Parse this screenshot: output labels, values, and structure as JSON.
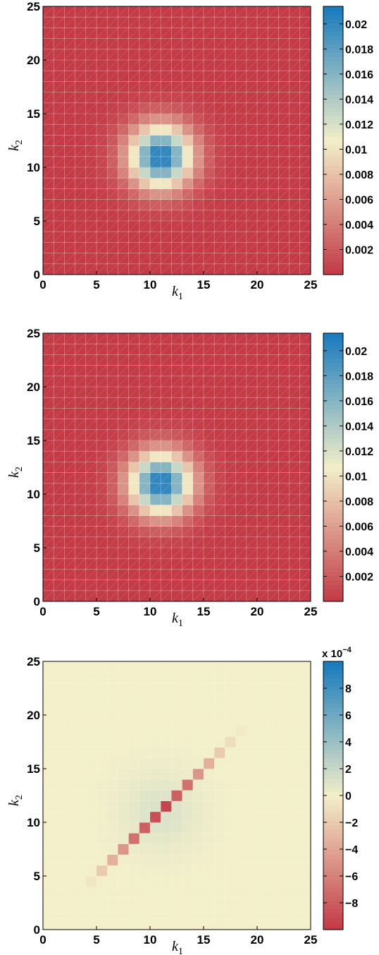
{
  "colors": {
    "low": "#c33b47",
    "mid": "#f3efc9",
    "high": "#1a7bbd"
  },
  "chart_data": [
    {
      "type": "heatmap",
      "title": "",
      "xlabel": "k",
      "xlabel_sub": "1",
      "ylabel": "k",
      "ylabel_sub": "2",
      "xlim": [
        0,
        25
      ],
      "ylim": [
        0,
        25
      ],
      "x_ticks": [
        "0",
        "5",
        "10",
        "15",
        "20",
        "25"
      ],
      "y_ticks": [
        "0",
        "5",
        "10",
        "15",
        "20",
        "25"
      ],
      "grid": "cell-mesh",
      "pattern": "gaussian-bump",
      "peak": 0.0214,
      "center": [
        11,
        11
      ],
      "sigma": 2.1,
      "clim": [
        0,
        0.0214
      ],
      "colorbar": {
        "ticks": [
          0.002,
          0.004,
          0.006,
          0.008,
          0.01,
          0.012,
          0.014,
          0.016,
          0.018,
          0.02
        ],
        "tick_labels": [
          "0.002",
          "0.004",
          "0.006",
          "0.008",
          "0.01",
          "0.012",
          "0.014",
          "0.016",
          "0.018",
          "0.02"
        ],
        "exponent_label": ""
      }
    },
    {
      "type": "heatmap",
      "title": "",
      "xlabel": "k",
      "xlabel_sub": "1",
      "ylabel": "k",
      "ylabel_sub": "2",
      "xlim": [
        0,
        25
      ],
      "ylim": [
        0,
        25
      ],
      "x_ticks": [
        "0",
        "5",
        "10",
        "15",
        "20",
        "25"
      ],
      "y_ticks": [
        "0",
        "5",
        "10",
        "15",
        "20",
        "25"
      ],
      "grid": "cell-mesh",
      "pattern": "gaussian-bump",
      "peak": 0.0214,
      "center": [
        11,
        11
      ],
      "sigma": 2.1,
      "clim": [
        0,
        0.0214
      ],
      "colorbar": {
        "ticks": [
          0.002,
          0.004,
          0.006,
          0.008,
          0.01,
          0.012,
          0.014,
          0.016,
          0.018,
          0.02
        ],
        "tick_labels": [
          "0.002",
          "0.004",
          "0.006",
          "0.008",
          "0.01",
          "0.012",
          "0.014",
          "0.016",
          "0.018",
          "0.02"
        ],
        "exponent_label": ""
      }
    },
    {
      "type": "heatmap",
      "title": "",
      "xlabel": "k",
      "xlabel_sub": "1",
      "ylabel": "k",
      "ylabel_sub": "2",
      "xlim": [
        0,
        25
      ],
      "ylim": [
        0,
        25
      ],
      "x_ticks": [
        "0",
        "5",
        "10",
        "15",
        "20",
        "25"
      ],
      "y_ticks": [
        "0",
        "5",
        "10",
        "15",
        "20",
        "25"
      ],
      "grid": "faint",
      "pattern": "difference-diagonal",
      "clim": [
        -0.001,
        0.001
      ],
      "bump_peak": 0.00012,
      "bump_center": [
        11,
        11
      ],
      "bump_sigma": 2.5,
      "diagonal": [
        {
          "k": 4,
          "value": -5e-05
        },
        {
          "k": 5,
          "value": -0.0002
        },
        {
          "k": 6,
          "value": -0.00035
        },
        {
          "k": 7,
          "value": -0.0005
        },
        {
          "k": 8,
          "value": -0.0007
        },
        {
          "k": 9,
          "value": -0.0008
        },
        {
          "k": 10,
          "value": -0.0009
        },
        {
          "k": 11,
          "value": -0.00095
        },
        {
          "k": 12,
          "value": -0.0008
        },
        {
          "k": 13,
          "value": -0.0007
        },
        {
          "k": 14,
          "value": -0.0005
        },
        {
          "k": 15,
          "value": -0.00035
        },
        {
          "k": 16,
          "value": -0.0002
        },
        {
          "k": 17,
          "value": -0.0001
        },
        {
          "k": 18,
          "value": -3e-05
        }
      ],
      "colorbar": {
        "ticks": [
          -0.0008,
          -0.0006,
          -0.0004,
          -0.0002,
          0,
          0.0002,
          0.0004,
          0.0006,
          0.0008
        ],
        "tick_labels": [
          "−8",
          "−6",
          "−4",
          "−2",
          "0",
          "2",
          "4",
          "6",
          "8"
        ],
        "exponent_label": "x 10",
        "exponent_power": "−4"
      }
    }
  ]
}
